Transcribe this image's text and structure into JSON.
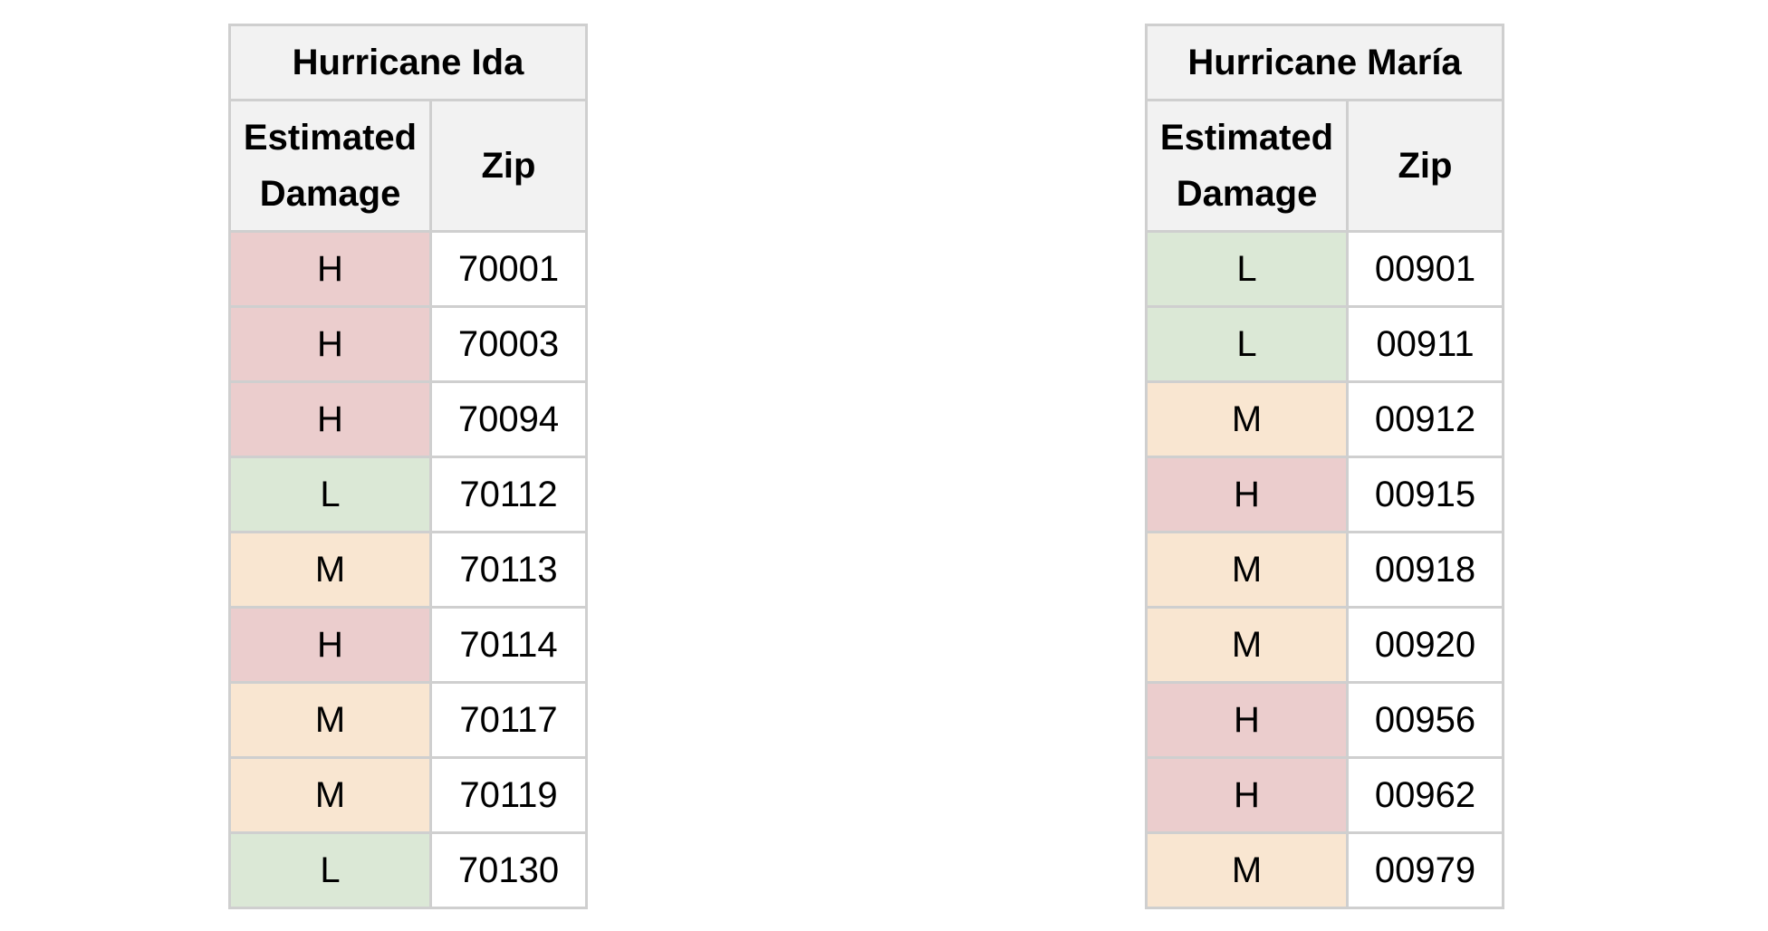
{
  "tables": [
    {
      "title": "Hurricane Ida",
      "headers": [
        "Estimated Damage",
        "Zip"
      ],
      "rows": [
        {
          "damage": "H",
          "zip": "70001"
        },
        {
          "damage": "H",
          "zip": "70003"
        },
        {
          "damage": "H",
          "zip": "70094"
        },
        {
          "damage": "L",
          "zip": "70112"
        },
        {
          "damage": "M",
          "zip": "70113"
        },
        {
          "damage": "H",
          "zip": "70114"
        },
        {
          "damage": "M",
          "zip": "70117"
        },
        {
          "damage": "M",
          "zip": "70119"
        },
        {
          "damage": "L",
          "zip": "70130"
        }
      ]
    },
    {
      "title": "Hurricane María",
      "headers": [
        "Estimated Damage",
        "Zip"
      ],
      "rows": [
        {
          "damage": "L",
          "zip": "00901"
        },
        {
          "damage": "L",
          "zip": "00911"
        },
        {
          "damage": "M",
          "zip": "00912"
        },
        {
          "damage": "H",
          "zip": "00915"
        },
        {
          "damage": "M",
          "zip": "00918"
        },
        {
          "damage": "M",
          "zip": "00920"
        },
        {
          "damage": "H",
          "zip": "00956"
        },
        {
          "damage": "H",
          "zip": "00962"
        },
        {
          "damage": "M",
          "zip": "00979"
        }
      ]
    }
  ],
  "damage_colors": {
    "H": "#ebcdcd",
    "M": "#f9e6d1",
    "L": "#dbe8d6"
  },
  "header_color": "#f2f2f2",
  "border_color": "#cfcfcf"
}
